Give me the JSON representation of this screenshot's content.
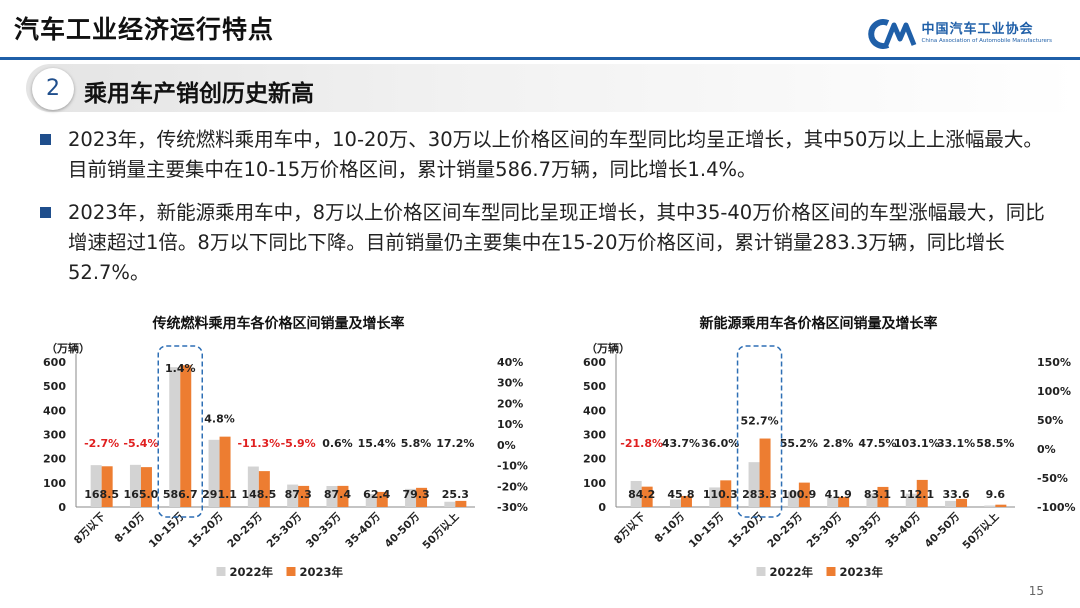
{
  "header": {
    "title": "汽车工业经济运行特点",
    "logo_cn": "中国汽车工业协会",
    "logo_en": "China Association of Automobile Manufacturers"
  },
  "section": {
    "number": "2",
    "title": "乘用车产销创历史新高"
  },
  "bullets": [
    "2023年，传统燃料乘用车中，10-20万、30万以上价格区间的车型同比均呈正增长，其中50万以上上涨幅最大。目前销量主要集中在10-15万价格区间，累计销量586.7万辆，同比增长1.4%。",
    "2023年，新能源乘用车中，8万以上价格区间车型同比呈现正增长，其中35-40万价格区间的车型涨幅最大，同比增速超过1倍。8万以下同比下降。目前销量仍主要集中在15-20万价格区间，累计销量283.3万辆，同比增长52.7%。"
  ],
  "colors": {
    "accent": "#1f4e8c",
    "bar2022": "#d3d3d3",
    "bar2023": "#ed7d31",
    "negative": "#e02020",
    "highlight": "#2e6fb5"
  },
  "page_number": "15",
  "chart_data": [
    {
      "type": "bar",
      "title": "传统燃料乘用车各价格区间销量及增长率",
      "ylabel": "（万辆）",
      "ylim": [
        0,
        600
      ],
      "yticks": [
        "600",
        "500",
        "400",
        "300",
        "200",
        "100",
        "0"
      ],
      "y2ticks": [
        "40%",
        "30%",
        "20%",
        "10%",
        "0%",
        "-10%",
        "-20%",
        "-30%"
      ],
      "categories": [
        "8万以下",
        "8-10万",
        "10-15万",
        "15-20万",
        "20-25万",
        "25-30万",
        "30-35万",
        "35-40万",
        "40-50万",
        "50万以上"
      ],
      "series": [
        {
          "name": "2022年",
          "values": [
            173.2,
            174.4,
            578.6,
            278.0,
            167.4,
            92.8,
            86.9,
            54.1,
            75.0,
            21.6
          ]
        },
        {
          "name": "2023年",
          "values": [
            168.5,
            165.0,
            586.7,
            291.1,
            148.5,
            87.3,
            87.4,
            62.4,
            79.3,
            25.3
          ]
        }
      ],
      "value_labels": [
        "168.5",
        "165.0",
        "586.7",
        "291.1",
        "148.5",
        "87.3",
        "87.4",
        "62.4",
        "79.3",
        "25.3"
      ],
      "growth_labels": [
        "-2.7%",
        "-5.4%",
        "1.4%",
        "4.8%",
        "-11.3%",
        "-5.9%",
        "0.6%",
        "15.4%",
        "5.8%",
        "17.2%"
      ],
      "highlight_index": 2
    },
    {
      "type": "bar",
      "title": "新能源乘用车各价格区间销量及增长率",
      "ylabel": "（万辆）",
      "ylim": [
        0,
        600
      ],
      "yticks": [
        "600",
        "500",
        "400",
        "300",
        "200",
        "100",
        "0"
      ],
      "y2ticks": [
        "150%",
        "100%",
        "50%",
        "0%",
        "-50%",
        "-100%"
      ],
      "categories": [
        "8万以下",
        "8-10万",
        "10-15万",
        "15-20万",
        "20-25万",
        "25-30万",
        "30-35万",
        "35-40万",
        "40-50万",
        "50万以上"
      ],
      "series": [
        {
          "name": "2022年",
          "values": [
            107.7,
            31.9,
            81.0,
            185.5,
            65.0,
            40.8,
            56.4,
            55.2,
            25.2,
            6.1
          ]
        },
        {
          "name": "2023年",
          "values": [
            84.2,
            45.8,
            110.3,
            283.3,
            100.9,
            41.9,
            83.1,
            112.1,
            33.6,
            9.6
          ]
        }
      ],
      "value_labels": [
        "84.2",
        "45.8",
        "110.3",
        "283.3",
        "100.9",
        "41.9",
        "83.1",
        "112.1",
        "33.6",
        "9.6"
      ],
      "growth_labels": [
        "-21.8%",
        "43.7%",
        "36.0%",
        "52.7%",
        "55.2%",
        "2.8%",
        "47.5%",
        "103.1%",
        "33.1%",
        "58.5%"
      ],
      "highlight_index": 3
    }
  ]
}
